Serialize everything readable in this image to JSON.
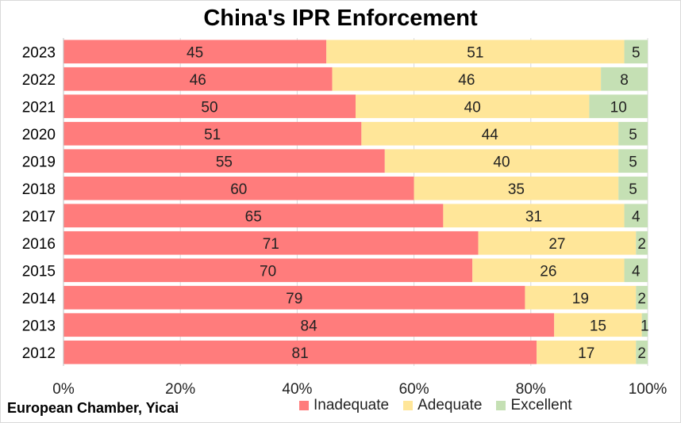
{
  "colors": {
    "inadequate": "#ff7c7c",
    "adequate": "#ffe699",
    "excellent": "#c5e0b4"
  },
  "source": "European Chamber, Yicai",
  "chart_data": {
    "type": "bar",
    "orientation": "horizontal",
    "stacked": "percent",
    "title": "China's IPR Enforcement",
    "categories": [
      "2023",
      "2022",
      "2021",
      "2020",
      "2019",
      "2018",
      "2017",
      "2016",
      "2015",
      "2014",
      "2013",
      "2012"
    ],
    "series": [
      {
        "name": "Inadequate",
        "values": [
          45,
          46,
          50,
          51,
          55,
          60,
          65,
          71,
          70,
          79,
          84,
          81
        ]
      },
      {
        "name": "Adequate",
        "values": [
          51,
          46,
          40,
          44,
          40,
          35,
          31,
          27,
          26,
          19,
          15,
          17
        ]
      },
      {
        "name": "Excellent",
        "values": [
          5,
          8,
          10,
          5,
          5,
          5,
          4,
          2,
          4,
          2,
          1,
          2
        ]
      }
    ],
    "xlim": [
      0,
      100
    ],
    "xticks": [
      "0%",
      "20%",
      "40%",
      "60%",
      "80%",
      "100%"
    ],
    "grid": true,
    "legend_position": "bottom"
  }
}
